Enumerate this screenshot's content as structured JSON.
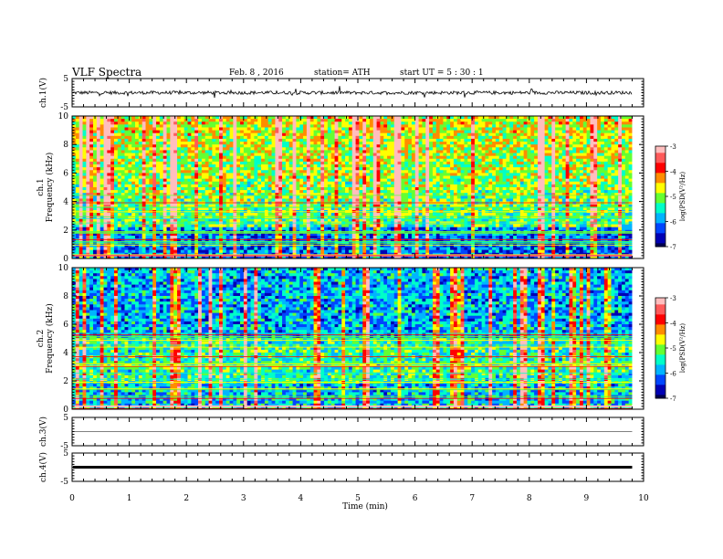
{
  "header": {
    "title": "VLF  Spectra",
    "date": "Feb. 8  , 2016",
    "station": "station= ATH",
    "start": "start  UT  =   5  : 30 : 1"
  },
  "colors": {
    "colormap": [
      "#000050",
      "#0000b4",
      "#0046ff",
      "#00b4ff",
      "#00ffc8",
      "#64ff32",
      "#ffff00",
      "#ff8c00",
      "#ff0000",
      "#ff5a5a",
      "#ffbebe",
      "#ffffff"
    ]
  },
  "chart_data": [
    {
      "type": "line",
      "panel": "ch1-waveform",
      "ylabel": "ch.1(V)",
      "ylim": [
        -5,
        5
      ],
      "yticks": [
        "5",
        "-5"
      ],
      "xlim": [
        0,
        10
      ],
      "data_extent_min": 9.8,
      "series": [
        {
          "description_level_V": 0,
          "noise_amplitude_V": 0.6
        }
      ]
    },
    {
      "type": "heatmap",
      "panel": "ch1-spectrogram",
      "ylabel": "ch.1\nFrequency  (kHz)",
      "ylim": [
        0,
        10
      ],
      "yticks": [
        "0",
        "2",
        "4",
        "6",
        "8",
        "10"
      ],
      "xlim": [
        0,
        10
      ],
      "colorbar": {
        "label": "log(PSD(V²/Hz)",
        "range": [
          -7,
          -3
        ],
        "ticks": [
          "-3",
          "-4",
          "-5",
          "-6",
          "-7"
        ]
      }
    },
    {
      "type": "heatmap",
      "panel": "ch2-spectrogram",
      "ylabel": "ch.2\nFrequency  (kHz)",
      "ylim": [
        0,
        10
      ],
      "yticks": [
        "0",
        "2",
        "4",
        "6",
        "8",
        "10"
      ],
      "xlim": [
        0,
        10
      ],
      "colorbar": {
        "label": "log(PSD(V²/Hz)",
        "range": [
          -7,
          -3
        ],
        "ticks": [
          "-3",
          "-4",
          "-5",
          "-6",
          "-7"
        ]
      }
    },
    {
      "type": "line",
      "panel": "ch3-waveform",
      "ylabel": "ch.3(V)",
      "ylim": [
        -5,
        5
      ],
      "yticks": [
        "5",
        "-5"
      ],
      "xlim": [
        0,
        10
      ],
      "series": [
        {
          "level_V": 0
        }
      ]
    },
    {
      "type": "line",
      "panel": "ch4-waveform",
      "ylabel": "ch.4(V)",
      "ylim": [
        -5,
        5
      ],
      "yticks": [
        "5",
        "-5"
      ],
      "xlim": [
        0,
        10
      ],
      "series": [
        {
          "level_V": 0
        }
      ]
    }
  ],
  "xaxis": {
    "label": "Time  (min)",
    "ticks": [
      "0",
      "1",
      "2",
      "3",
      "4",
      "5",
      "6",
      "7",
      "8",
      "9",
      "10"
    ]
  }
}
